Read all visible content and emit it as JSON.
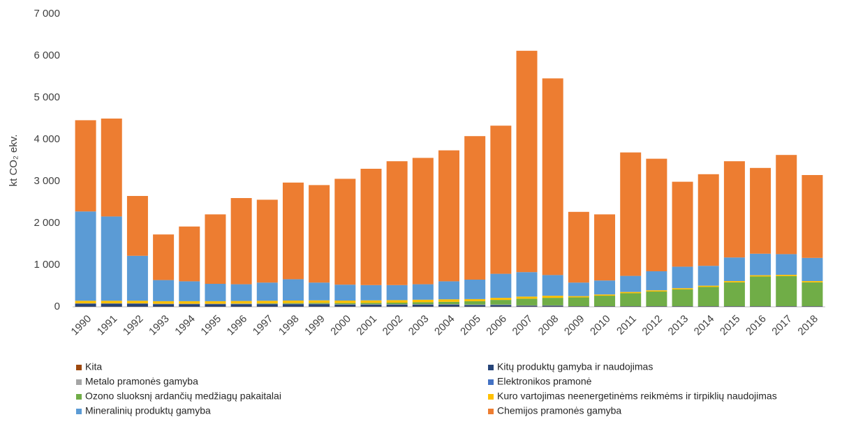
{
  "chart_data": {
    "type": "stacked_bar",
    "y_label": "kt CO₂ ekv.",
    "categories": [
      "1990",
      "1991",
      "1992",
      "1993",
      "1994",
      "1995",
      "1996",
      "1997",
      "1998",
      "1999",
      "2000",
      "2001",
      "2002",
      "2003",
      "2004",
      "2005",
      "2006",
      "2007",
      "2008",
      "2009",
      "2010",
      "2011",
      "2012",
      "2013",
      "2014",
      "2015",
      "2016",
      "2017",
      "2018"
    ],
    "series": [
      {
        "name": "Kita",
        "color": "#9e480e",
        "values": [
          5,
          5,
          5,
          5,
          5,
          5,
          5,
          5,
          5,
          5,
          5,
          5,
          5,
          5,
          5,
          5,
          5,
          5,
          5,
          5,
          5,
          5,
          5,
          5,
          5,
          5,
          5,
          5,
          5
        ]
      },
      {
        "name": "Kitų produktų gamyba ir naudojimas",
        "color": "#264478",
        "values": [
          70,
          70,
          70,
          60,
          60,
          60,
          60,
          60,
          60,
          60,
          50,
          50,
          50,
          50,
          50,
          40,
          40,
          20,
          20,
          10,
          10,
          10,
          10,
          10,
          10,
          10,
          10,
          10,
          10
        ]
      },
      {
        "name": "Metalo pramonės gamyba",
        "color": "#a5a5a5",
        "values": [
          10,
          10,
          10,
          10,
          10,
          10,
          10,
          10,
          10,
          10,
          10,
          10,
          10,
          10,
          10,
          10,
          10,
          10,
          10,
          1,
          1,
          1,
          1,
          1,
          1,
          1,
          1,
          1,
          1
        ]
      },
      {
        "name": "Elektronikos pramonė",
        "color": "#4472c4",
        "values": [
          0,
          0,
          0,
          0,
          0,
          0,
          0,
          0,
          0,
          0,
          0,
          0,
          0,
          0,
          0,
          0,
          0,
          0,
          0,
          0,
          0,
          0,
          0,
          0,
          0,
          0,
          0,
          0,
          0
        ]
      },
      {
        "name": "Ozono sluoksnį ardančių medžiagų pakaitalai",
        "color": "#70ad47",
        "values": [
          0,
          0,
          0,
          0,
          0,
          0,
          5,
          10,
          15,
          20,
          25,
          30,
          35,
          45,
          55,
          80,
          110,
          160,
          180,
          210,
          250,
          310,
          350,
          400,
          460,
          570,
          710,
          720,
          570
        ]
      },
      {
        "name": "Kuro vartojimas neenergetinėms reikmėms ir tirpiklių naudojimas",
        "color": "#ffc000",
        "values": [
          60,
          60,
          60,
          60,
          60,
          60,
          60,
          60,
          60,
          60,
          60,
          60,
          60,
          60,
          60,
          50,
          50,
          50,
          50,
          30,
          30,
          30,
          30,
          30,
          30,
          30,
          30,
          30,
          30
        ]
      },
      {
        "name": "Mineralinių produktų gamyba",
        "color": "#5b9bd5",
        "values": [
          2135,
          2015,
          1075,
          505,
          475,
          415,
          400,
          435,
          510,
          425,
          380,
          365,
          360,
          370,
          430,
          465,
          575,
          585,
          495,
          324,
          334,
          384,
          454,
          514,
          474,
          564,
          514,
          494,
          554
        ]
      },
      {
        "name": "Chemijos pramonės gamyba",
        "color": "#ed7d31",
        "values": [
          2180,
          2340,
          1430,
          1090,
          1310,
          1660,
          2060,
          1980,
          2310,
          2330,
          2530,
          2780,
          2960,
          3020,
          3130,
          3430,
          3540,
          5290,
          4700,
          1690,
          1580,
          2950,
          2690,
          2030,
          2190,
          2300,
          2050,
          2370,
          1980
        ]
      }
    ],
    "ylim": [
      0,
      7000
    ],
    "yticks": [
      0,
      {
        "value": 1000,
        "label": "1 000"
      },
      {
        "value": 2000,
        "label": "2 000"
      },
      {
        "value": 3000,
        "label": "3 000"
      },
      {
        "value": 4000,
        "label": "4 000"
      },
      {
        "value": 5000,
        "label": "5 000"
      },
      {
        "value": 6000,
        "label": "6 000"
      },
      {
        "value": 7000,
        "label": "7 000"
      }
    ]
  }
}
